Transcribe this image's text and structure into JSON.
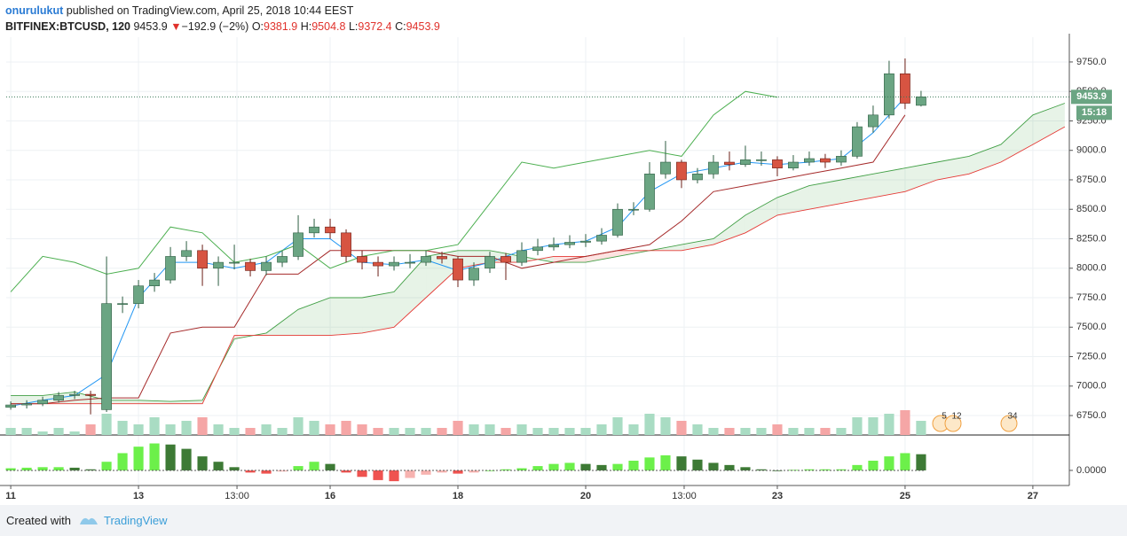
{
  "header": {
    "author": "onurulukut",
    "published": " published on TradingView.com, April 25, 2018 10:44 EEST",
    "symbol": "BITFINEX:BTCUSD, 120",
    "last": "9453.9",
    "arrow": "▼",
    "change": "−192.9 (−2%)",
    "o_label": "O:",
    "o_value": "9381.9",
    "h_label": "H:",
    "h_value": "9504.8",
    "l_label": "L:",
    "l_value": "9372.4",
    "c_label": "C:",
    "c_value": "9453.9"
  },
  "chart_data": {
    "type": "candlestick",
    "x": [
      0,
      6,
      12,
      18,
      24,
      30,
      36,
      42,
      48,
      54,
      60,
      66,
      72,
      78,
      84,
      90,
      96,
      102,
      108,
      114,
      120,
      126,
      132,
      138,
      144,
      150,
      156,
      162,
      168,
      174,
      180,
      186,
      192,
      198,
      204,
      210,
      216,
      222,
      228,
      234,
      240,
      246,
      252,
      258,
      264,
      270,
      276,
      282,
      288,
      294,
      300,
      306,
      312,
      318,
      324,
      330,
      336,
      342
    ],
    "open": [
      6820,
      6840,
      6850,
      6880,
      6920,
      6930,
      6800,
      7700,
      7700,
      7850,
      7900,
      8100,
      8150,
      8000,
      8050,
      8050,
      7980,
      8050,
      8100,
      8300,
      8350,
      8300,
      8100,
      8050,
      8020,
      8050,
      8050,
      8100,
      8080,
      7900,
      8000,
      8100,
      8050,
      8150,
      8180,
      8200,
      8220,
      8230,
      8280,
      8500,
      8500,
      8800,
      8900,
      8750,
      8800,
      8900,
      8880,
      8920,
      8920,
      8850,
      8900,
      8930,
      8900,
      8950,
      9200,
      9300,
      9650,
      9381.9
    ],
    "high": [
      6870,
      6880,
      6910,
      6950,
      6960,
      6960,
      8100,
      7760,
      7900,
      7960,
      8180,
      8230,
      8200,
      8100,
      8200,
      8080,
      8100,
      8150,
      8450,
      8420,
      8420,
      8330,
      8150,
      8100,
      8100,
      8120,
      8150,
      8140,
      8100,
      8050,
      8140,
      8130,
      8220,
      8250,
      8260,
      8280,
      8290,
      8340,
      8550,
      8560,
      8900,
      9080,
      8920,
      8850,
      8960,
      8990,
      9040,
      8990,
      8950,
      8960,
      8990,
      8970,
      9000,
      9240,
      9380,
      9760,
      9780,
      9504.8
    ],
    "low": [
      6800,
      6810,
      6830,
      6860,
      6890,
      6760,
      6780,
      7620,
      7660,
      7800,
      7870,
      8060,
      7850,
      7850,
      7990,
      7930,
      7940,
      8010,
      8070,
      8260,
      8250,
      8050,
      7990,
      7930,
      7980,
      8000,
      8020,
      8040,
      7840,
      7850,
      7960,
      7900,
      8020,
      8110,
      8150,
      8170,
      8180,
      8200,
      8260,
      8450,
      8480,
      8760,
      8680,
      8720,
      8760,
      8830,
      8860,
      8870,
      8780,
      8830,
      8870,
      8850,
      8870,
      8930,
      9150,
      9270,
      9350,
      9372.4
    ],
    "close": [
      6840,
      6850,
      6880,
      6920,
      6930,
      6920,
      7700,
      7700,
      7850,
      7900,
      8100,
      8150,
      8000,
      8050,
      8050,
      7980,
      8050,
      8100,
      8300,
      8350,
      8300,
      8100,
      8050,
      8020,
      8050,
      8050,
      8100,
      8080,
      7900,
      8000,
      8100,
      8050,
      8150,
      8180,
      8200,
      8220,
      8230,
      8280,
      8500,
      8500,
      8800,
      8900,
      8750,
      8800,
      8900,
      8880,
      8920,
      8920,
      8850,
      8900,
      8930,
      8900,
      8950,
      9200,
      9300,
      9650,
      9400,
      9453.9
    ],
    "volume": [
      2,
      2,
      1,
      2,
      1,
      3,
      6,
      4,
      3,
      5,
      3,
      4,
      5,
      3,
      2,
      2,
      3,
      2,
      5,
      4,
      3,
      4,
      3,
      2,
      2,
      2,
      2,
      2,
      4,
      3,
      3,
      2,
      3,
      2,
      2,
      2,
      2,
      3,
      5,
      3,
      6,
      5,
      4,
      3,
      2,
      2,
      2,
      2,
      3,
      2,
      2,
      2,
      2,
      5,
      5,
      6,
      7,
      4
    ],
    "up_color": "#6ba583",
    "down_color": "#d75442",
    "up_volume_color": "#a9dcc3",
    "down_volume_color": "#f5a6a6",
    "lines": [
      {
        "color": "#2196f3",
        "x": [
          0,
          12,
          24,
          36,
          48,
          60,
          72,
          84,
          96,
          108,
          120,
          132,
          144,
          156,
          168,
          180,
          192,
          204,
          216,
          228,
          240,
          252,
          264,
          276,
          288,
          300,
          312,
          324,
          336
        ],
        "values": [
          6830,
          6880,
          6920,
          7100,
          7750,
          8050,
          8050,
          8000,
          8050,
          8250,
          8250,
          8050,
          8030,
          8070,
          7980,
          8050,
          8150,
          8200,
          8230,
          8350,
          8650,
          8800,
          8850,
          8900,
          8880,
          8900,
          8930,
          9150,
          9450
        ]
      },
      {
        "color": "#a52a2a",
        "x": [
          0,
          12,
          24,
          36,
          48,
          60,
          72,
          84,
          96,
          108,
          120,
          132,
          144,
          156,
          168,
          180,
          192,
          204,
          216,
          228,
          240,
          252,
          264,
          276,
          288,
          300,
          312,
          324,
          336
        ],
        "values": [
          6850,
          6850,
          6880,
          6900,
          6900,
          7450,
          7500,
          7500,
          7950,
          7950,
          8150,
          8150,
          8150,
          8150,
          8100,
          8100,
          8000,
          8050,
          8100,
          8150,
          8200,
          8400,
          8650,
          8700,
          8750,
          8800,
          8850,
          8900,
          9300
        ]
      },
      {
        "color": "#4caf50",
        "x": [
          0,
          12,
          24,
          36,
          48,
          60,
          72,
          84,
          96,
          108,
          120,
          132,
          144,
          156,
          168,
          180,
          192,
          204,
          216,
          228,
          240,
          252,
          264,
          276,
          288
        ],
        "values": [
          7800,
          8100,
          8050,
          7950,
          8000,
          8350,
          8300,
          8050,
          8100,
          8200,
          8000,
          8100,
          8150,
          8150,
          8200,
          8550,
          8900,
          8850,
          8900,
          8950,
          9000,
          8950,
          9300,
          9500,
          9450
        ]
      }
    ],
    "cloud": {
      "x": [
        0,
        12,
        24,
        36,
        48,
        60,
        72,
        84,
        96,
        108,
        120,
        132,
        144,
        156,
        168,
        180,
        192,
        204,
        216,
        228,
        240,
        252,
        264,
        276,
        288,
        300,
        312,
        324,
        336,
        348,
        360,
        372,
        384,
        396
      ],
      "span_a": [
        6920,
        6920,
        6950,
        6880,
        6880,
        6870,
        6880,
        7400,
        7450,
        7650,
        7750,
        7750,
        7800,
        8100,
        8150,
        8150,
        8100,
        8050,
        8050,
        8100,
        8150,
        8200,
        8250,
        8450,
        8600,
        8700,
        8750,
        8800,
        8850,
        8900,
        8950,
        9050,
        9300,
        9400
      ],
      "span_b": [
        6850,
        6850,
        6850,
        6850,
        6850,
        6850,
        6850,
        7430,
        7430,
        7430,
        7430,
        7450,
        7500,
        7750,
        8000,
        8050,
        8050,
        8100,
        8100,
        8150,
        8150,
        8150,
        8200,
        8300,
        8450,
        8500,
        8550,
        8600,
        8650,
        8750,
        8800,
        8900,
        9050,
        9200
      ],
      "a_color": "#43a047",
      "b_color": "#e53935",
      "up_fill": "rgba(67,160,71,0.13)",
      "down_fill": "rgba(244,67,54,0.15)"
    },
    "macd": {
      "values": [
        0.2,
        0.25,
        0.3,
        0.3,
        0.25,
        0.1,
        0.8,
        1.6,
        2.2,
        2.5,
        2.4,
        2.0,
        1.3,
        0.8,
        0.3,
        -0.2,
        -0.3,
        -0.1,
        0.4,
        0.8,
        0.6,
        -0.2,
        -0.6,
        -0.9,
        -1.0,
        -0.7,
        -0.4,
        -0.2,
        -0.3,
        -0.2,
        0.0,
        0.1,
        0.2,
        0.4,
        0.6,
        0.7,
        0.6,
        0.5,
        0.6,
        0.9,
        1.2,
        1.4,
        1.3,
        1.0,
        0.7,
        0.5,
        0.3,
        0.1,
        0.0,
        0.05,
        0.1,
        0.1,
        0.1,
        0.5,
        0.9,
        1.3,
        1.6,
        1.5
      ],
      "ylim": [
        -1.4,
        3.2
      ],
      "yticks": [
        {
          "value": 0,
          "label": "0.0000"
        }
      ],
      "rise_color": "#6cf04a",
      "fall_color": "#3d7a35",
      "neg_fall_color": "#ef5350",
      "neg_rise_color": "#f7b3b0"
    },
    "xlim": [
      -1.7,
      397.7
    ],
    "xticks": [
      {
        "value": 0,
        "label": "11"
      },
      {
        "value": 48,
        "label": "13"
      },
      {
        "value": 85,
        "label": "13:00"
      },
      {
        "value": 120,
        "label": "16"
      },
      {
        "value": 168,
        "label": "18"
      },
      {
        "value": 216,
        "label": "20"
      },
      {
        "value": 253,
        "label": "13:00"
      },
      {
        "value": 288,
        "label": "23"
      },
      {
        "value": 336,
        "label": "25"
      },
      {
        "value": 384,
        "label": "27"
      }
    ],
    "ylim": [
      6585,
      9960
    ],
    "yticks": [
      {
        "value": 6750,
        "label": "6750.0"
      },
      {
        "value": 7000,
        "label": "7000.0"
      },
      {
        "value": 7250,
        "label": "7250.0"
      },
      {
        "value": 7500,
        "label": "7500.0"
      },
      {
        "value": 7750,
        "label": "7750.0"
      },
      {
        "value": 8000,
        "label": "8000.0"
      },
      {
        "value": 8250,
        "label": "8250.0"
      },
      {
        "value": 8500,
        "label": "8500.0"
      },
      {
        "value": 8750,
        "label": "8750.0"
      },
      {
        "value": 9000,
        "label": "9000.0"
      },
      {
        "value": 9250,
        "label": "9250.0"
      },
      {
        "value": 9500,
        "label": "9500.0"
      },
      {
        "value": 9750,
        "label": "9750.0"
      }
    ],
    "grid": true,
    "countdown": "15:18",
    "event_labels": [
      "5",
      "12",
      "34"
    ]
  },
  "footer": {
    "created": "Created with",
    "brand": "TradingView"
  }
}
